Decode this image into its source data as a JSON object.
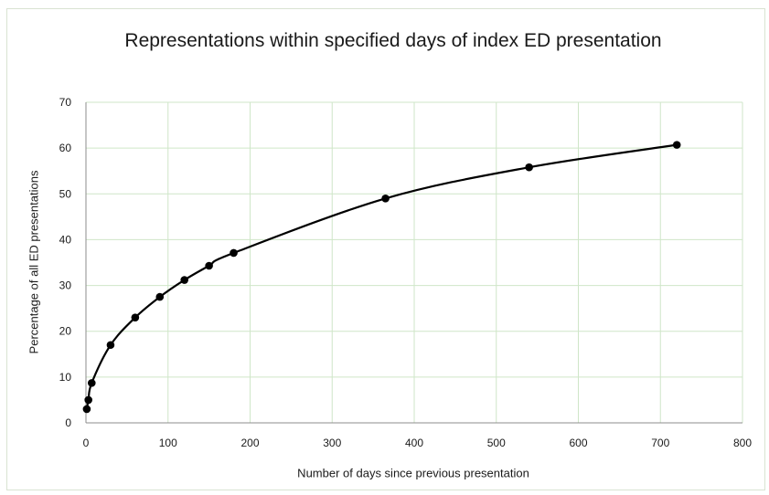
{
  "chart_data": {
    "type": "line",
    "title": "Representations within specified days of index ED presentation",
    "xlabel": "Number of days since previous presentation",
    "ylabel": "Percentage of all ED presentations",
    "xlim": [
      0,
      800
    ],
    "ylim": [
      0,
      70
    ],
    "xticks": [
      0,
      100,
      200,
      300,
      400,
      500,
      600,
      700,
      800
    ],
    "yticks": [
      0,
      10,
      20,
      30,
      40,
      50,
      60,
      70
    ],
    "grid": true,
    "legend": "none",
    "series": [
      {
        "x": [
          1,
          3,
          7,
          30,
          60,
          90,
          120,
          150,
          180,
          365,
          540,
          720
        ],
        "y": [
          3,
          5,
          8.7,
          17,
          23,
          27.5,
          31.2,
          34.3,
          37.1,
          49,
          55.8,
          60.7
        ]
      }
    ],
    "colors": {
      "line": "#000000",
      "grid": "#cfe6c8",
      "axis": "#8c8c8c"
    }
  }
}
